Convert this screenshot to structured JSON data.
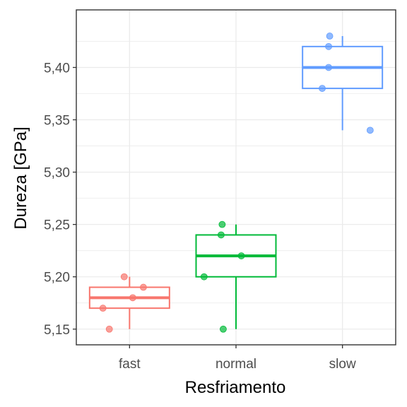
{
  "chart_data": {
    "type": "box",
    "xlabel": "Resfriamento",
    "ylabel": "Dureza [GPa]",
    "categories": [
      "fast",
      "normal",
      "slow"
    ],
    "ylim": [
      5.135,
      5.455
    ],
    "y_ticks": [
      5.15,
      5.2,
      5.25,
      5.3,
      5.35,
      5.4
    ],
    "y_tick_labels": [
      "5,15",
      "5,20",
      "5,25",
      "5,30",
      "5,35",
      "5,40"
    ],
    "grid": true,
    "legend": "none",
    "colors": {
      "fast": "#F8766D",
      "normal": "#00BA38",
      "slow": "#619CFF"
    },
    "series": [
      {
        "category": "fast",
        "box": {
          "min": 5.15,
          "q1": 5.17,
          "median": 5.18,
          "q3": 5.19,
          "max": 5.2
        },
        "points": [
          {
            "x_jitter": -0.05,
            "y": 5.2
          },
          {
            "x_jitter": 0.13,
            "y": 5.19
          },
          {
            "x_jitter": 0.03,
            "y": 5.18
          },
          {
            "x_jitter": -0.25,
            "y": 5.17
          },
          {
            "x_jitter": -0.19,
            "y": 5.15
          }
        ]
      },
      {
        "category": "normal",
        "box": {
          "min": 5.15,
          "q1": 5.2,
          "median": 5.22,
          "q3": 5.24,
          "max": 5.25
        },
        "points": [
          {
            "x_jitter": -0.13,
            "y": 5.25
          },
          {
            "x_jitter": -0.14,
            "y": 5.24
          },
          {
            "x_jitter": 0.05,
            "y": 5.22
          },
          {
            "x_jitter": -0.3,
            "y": 5.2
          },
          {
            "x_jitter": -0.12,
            "y": 5.15
          }
        ]
      },
      {
        "category": "slow",
        "box": {
          "min": 5.34,
          "q1": 5.38,
          "median": 5.4,
          "q3": 5.42,
          "max": 5.43
        },
        "points": [
          {
            "x_jitter": -0.12,
            "y": 5.43
          },
          {
            "x_jitter": -0.13,
            "y": 5.42
          },
          {
            "x_jitter": -0.13,
            "y": 5.4
          },
          {
            "x_jitter": -0.19,
            "y": 5.38
          },
          {
            "x_jitter": 0.26,
            "y": 5.34
          }
        ]
      }
    ]
  }
}
